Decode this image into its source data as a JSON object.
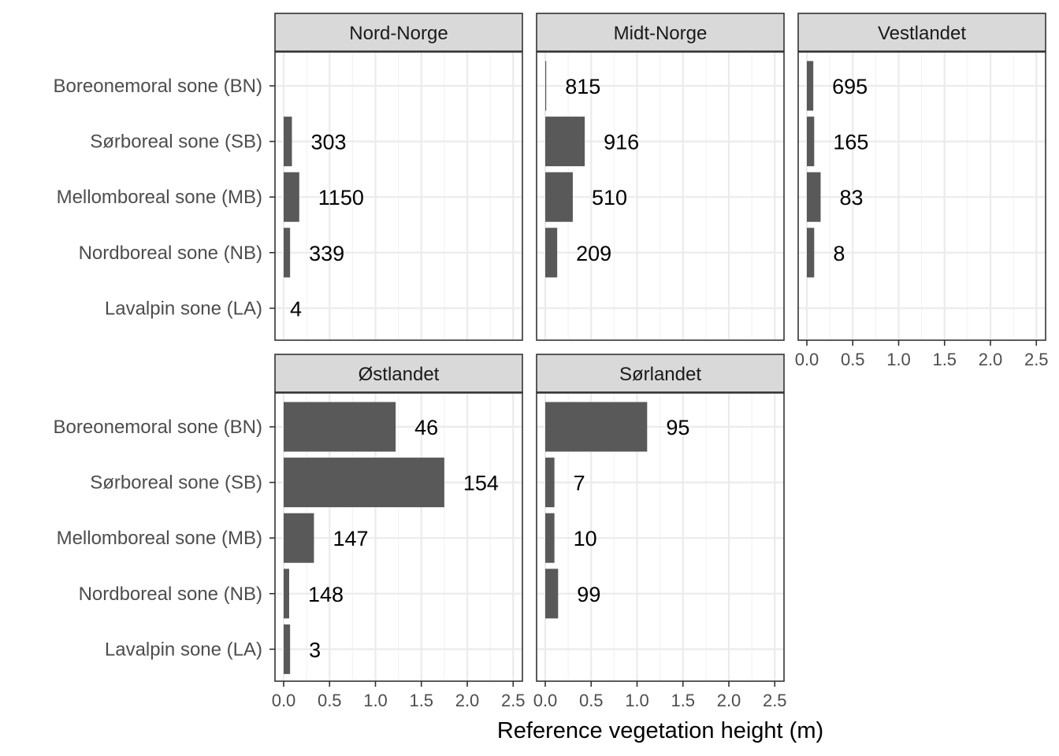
{
  "chart_data": {
    "type": "bar",
    "orientation": "horizontal",
    "facet_layout": "3 columns, 2 rows",
    "xlabel": "Reference vegetation height (m)",
    "ylabel": "",
    "xlim": [
      0,
      2.6
    ],
    "x_ticks": [
      0.0,
      0.5,
      1.0,
      1.5,
      2.0,
      2.5
    ],
    "x_tick_labels": [
      "0.0",
      "0.5",
      "1.0",
      "1.5",
      "2.0",
      "2.5"
    ],
    "categories": [
      "Boreonemoral sone (BN)",
      "Sørboreal sone (SB)",
      "Mellomboreal sone (MB)",
      "Nordboreal sone (NB)",
      "Lavalpin sone (LA)"
    ],
    "bar_color": "#595959",
    "strip_color": "#d9d9d9",
    "grid": true,
    "panels": [
      {
        "name": "Nord-Norge",
        "values": [
          null,
          0.09,
          0.17,
          0.07,
          null
        ],
        "labels": [
          "",
          "303",
          "1150",
          "339",
          "4"
        ]
      },
      {
        "name": "Midt-Norge",
        "values": [
          0.01,
          0.43,
          0.3,
          0.13,
          null
        ],
        "labels": [
          "815",
          "916",
          "510",
          "209",
          ""
        ]
      },
      {
        "name": "Vestlandet",
        "values": [
          0.07,
          0.08,
          0.15,
          0.08,
          null
        ],
        "labels": [
          "695",
          "165",
          "83",
          "8",
          ""
        ]
      },
      {
        "name": "Østlandet",
        "values": [
          1.22,
          1.75,
          0.33,
          0.06,
          0.07
        ],
        "labels": [
          "46",
          "154",
          "147",
          "148",
          "3"
        ]
      },
      {
        "name": "Sørlandet",
        "values": [
          1.11,
          0.1,
          0.1,
          0.14,
          null
        ],
        "labels": [
          "95",
          "7",
          "10",
          "99",
          ""
        ]
      }
    ]
  }
}
